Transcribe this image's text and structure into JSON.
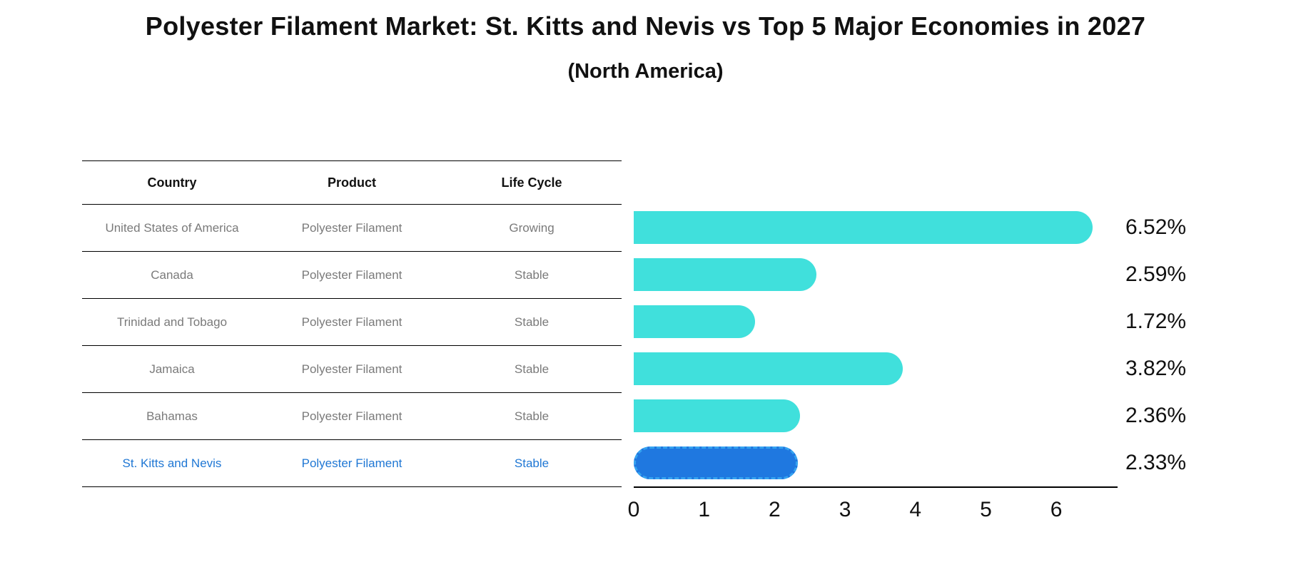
{
  "title": "Polyester Filament Market: St. Kitts and Nevis vs Top 5 Major Economies in 2027",
  "subtitle": "(North America)",
  "table": {
    "headers": [
      "Country",
      "Product",
      "Life Cycle"
    ],
    "highlight_text_color": "#1f77d4",
    "rows": [
      {
        "country": "United States of America",
        "product": "Polyester Filament",
        "life_cycle": "Growing",
        "highlight": false
      },
      {
        "country": "Canada",
        "product": "Polyester Filament",
        "life_cycle": "Stable",
        "highlight": false
      },
      {
        "country": "Trinidad and Tobago",
        "product": "Polyester Filament",
        "life_cycle": "Stable",
        "highlight": false
      },
      {
        "country": "Jamaica",
        "product": "Polyester Filament",
        "life_cycle": "Stable",
        "highlight": false
      },
      {
        "country": "Bahamas",
        "product": "Polyester Filament",
        "life_cycle": "Stable",
        "highlight": false
      },
      {
        "country": "St. Kitts and Nevis",
        "product": "Polyester Filament",
        "life_cycle": "Stable",
        "highlight": true
      }
    ]
  },
  "chart_data": {
    "type": "bar",
    "orientation": "horizontal",
    "title": "Polyester Filament Market: St. Kitts and Nevis vs Top 5 Major Economies in 2027 (North America)",
    "categories": [
      "United States of America",
      "Canada",
      "Trinidad and Tobago",
      "Jamaica",
      "Bahamas",
      "St. Kitts and Nevis"
    ],
    "values": [
      6.52,
      2.59,
      1.72,
      3.82,
      2.36,
      2.33
    ],
    "value_labels": [
      "6.52%",
      "2.59%",
      "1.72%",
      "3.82%",
      "2.36%",
      "2.33%"
    ],
    "xlabel": "",
    "ylabel": "",
    "xlim": [
      0,
      6.87
    ],
    "xticks": [
      0,
      1,
      2,
      3,
      4,
      5,
      6
    ],
    "grid": false,
    "legend": false,
    "bar_color": "#40E0DC",
    "highlight_bar_color": "#1F78E0",
    "highlight_border_color": "#35a2f0",
    "highlight_index": 5
  }
}
